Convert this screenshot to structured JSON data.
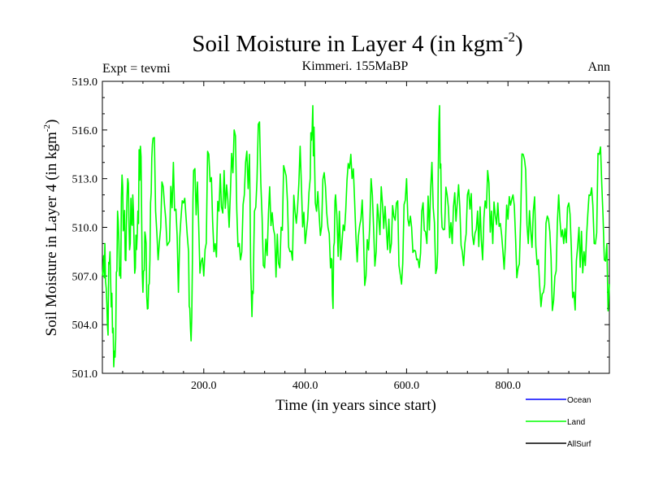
{
  "chart_data": {
    "type": "line",
    "title": "Soil Moisture in Layer 4 (in kgm",
    "title_sup": "-2",
    "title_close": ")",
    "subtitle_left": "Expt = tevmi",
    "subtitle_center": "Kimmeri. 155MaBP",
    "subtitle_right": "Ann",
    "xlabel": "Time (in years since start)",
    "ylabel": "Soil Moisture in Layer 4 (in kgm",
    "ylabel_sup": "-2",
    "ylabel_close": ")",
    "xlim": [
      0,
      1000
    ],
    "ylim": [
      501.0,
      519.0
    ],
    "xticks": [
      200,
      400,
      600,
      800
    ],
    "xtick_labels": [
      "200.0",
      "400.0",
      "600.0",
      "800.0"
    ],
    "yticks": [
      501,
      504,
      507,
      510,
      513,
      516,
      519
    ],
    "ytick_labels": [
      "501.0",
      "504.0",
      "507.0",
      "510.0",
      "513.0",
      "516.0",
      "519.0"
    ],
    "series": [
      {
        "name": "Land",
        "color": "#00ff00",
        "x": [
          0,
          5,
          10,
          15,
          20,
          25,
          30,
          35,
          40,
          45,
          50,
          55,
          60,
          65,
          70,
          75,
          80,
          85,
          90,
          95,
          100,
          110,
          120,
          130,
          140,
          150,
          160,
          170,
          175,
          180,
          190,
          200,
          210,
          220,
          230,
          240,
          250,
          260,
          270,
          280,
          290,
          295,
          300,
          310,
          320,
          330,
          340,
          350,
          360,
          370,
          380,
          390,
          400,
          410,
          415,
          420,
          430,
          440,
          450,
          455,
          460,
          470,
          480,
          490,
          500,
          510,
          520,
          530,
          540,
          550,
          560,
          570,
          580,
          590,
          600,
          610,
          620,
          630,
          640,
          650,
          660,
          665,
          670,
          680,
          690,
          700,
          710,
          720,
          730,
          740,
          750,
          760,
          770,
          780,
          790,
          800,
          810,
          820,
          830,
          840,
          850,
          860,
          870,
          880,
          890,
          900,
          910,
          920,
          930,
          940,
          950,
          960,
          970,
          980,
          990,
          1000
        ],
        "values": [
          507.0,
          509.0,
          504.0,
          508.5,
          503.5,
          502.0,
          511.0,
          507.5,
          512.5,
          508.0,
          513.0,
          509.0,
          512.0,
          507.5,
          511.0,
          515.0,
          506.0,
          509.5,
          505.0,
          511.5,
          515.5,
          508.0,
          512.5,
          509.0,
          514.0,
          506.0,
          511.5,
          508.5,
          503.0,
          513.5,
          510.0,
          507.0,
          514.5,
          508.5,
          511.0,
          513.5,
          510.0,
          516.0,
          509.0,
          512.0,
          514.5,
          504.5,
          511.0,
          516.5,
          507.5,
          512.5,
          509.5,
          507.5,
          513.5,
          508.5,
          511.0,
          515.0,
          509.0,
          513.0,
          517.5,
          511.5,
          509.5,
          512.5,
          507.5,
          505.0,
          512.0,
          508.0,
          511.0,
          514.5,
          509.5,
          510.5,
          507.0,
          513.0,
          508.5,
          512.5,
          510.0,
          509.0,
          511.5,
          506.5,
          513.0,
          510.0,
          508.0,
          511.0,
          509.0,
          514.0,
          507.5,
          517.5,
          510.0,
          512.0,
          509.0,
          511.5,
          508.5,
          512.0,
          509.5,
          511.0,
          508.0,
          513.5,
          509.0,
          511.5,
          508.5,
          510.5,
          512.0,
          507.5,
          514.5,
          509.0,
          511.0,
          508.0,
          506.0,
          510.5,
          505.5,
          512.0,
          509.0,
          511.5,
          506.0,
          510.0,
          508.5,
          512.0,
          509.0,
          514.5,
          508.0,
          506.5
        ]
      }
    ],
    "legend": [
      {
        "name": "Ocean",
        "color": "#0000ff"
      },
      {
        "name": "Land",
        "color": "#00ff00"
      },
      {
        "name": "AllSurf",
        "color": "#000000"
      }
    ],
    "legend_position": "bottom-right",
    "grid": false
  }
}
